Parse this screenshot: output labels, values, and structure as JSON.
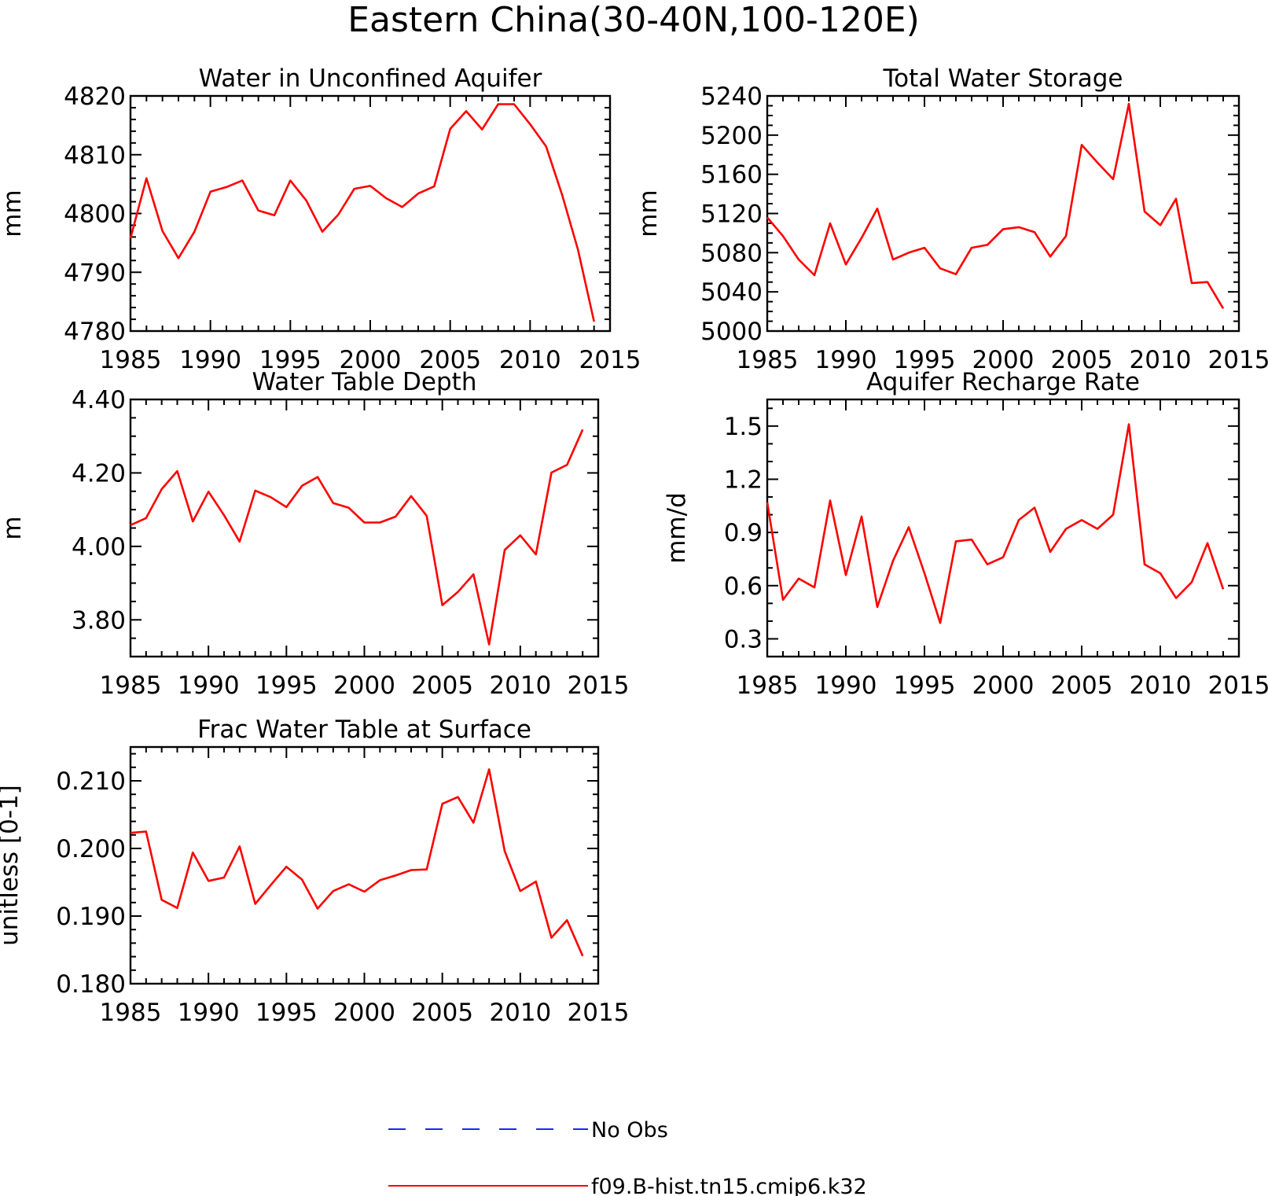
{
  "figure_title": "Eastern China(30-40N,100-120E)",
  "legend": {
    "entries": [
      {
        "label": "No Obs",
        "color": "#2222ff",
        "style": "dashed"
      },
      {
        "label": "f09.B-hist.tn15.cmip6.k32",
        "color": "#ff0000",
        "style": "solid"
      }
    ]
  },
  "chart_data": [
    {
      "type": "line",
      "title": "Water in Unconfined Aquifer",
      "xlabel": "",
      "ylabel": "mm",
      "xlim": [
        1985,
        2015
      ],
      "ylim": [
        4780,
        4820
      ],
      "xticks": [
        1985,
        1990,
        1995,
        2000,
        2005,
        2010,
        2015
      ],
      "xtick_labels": [
        "1985",
        "1990",
        "1995",
        "2000",
        "2005",
        "2010",
        "2015"
      ],
      "yticks": [
        4780,
        4790,
        4800,
        4810,
        4820
      ],
      "ytick_labels": [
        "4780",
        "4790",
        "4800",
        "4810",
        "4820"
      ],
      "series": [
        {
          "color": "#ff0000",
          "x": [
            1985,
            1986,
            1987,
            1988,
            1989,
            1990,
            1991,
            1992,
            1993,
            1994,
            1995,
            1996,
            1997,
            1998,
            1999,
            2000,
            2001,
            2002,
            2003,
            2004,
            2005,
            2006,
            2007,
            2008,
            2009,
            2010,
            2011,
            2012,
            2013,
            2014
          ],
          "y": [
            4795.8,
            4806.0,
            4797.0,
            4792.4,
            4796.9,
            4803.7,
            4804.5,
            4805.6,
            4800.5,
            4799.7,
            4805.6,
            4802.2,
            4796.9,
            4799.8,
            4804.2,
            4804.7,
            4802.6,
            4801.1,
            4803.4,
            4804.6,
            4814.4,
            4817.4,
            4814.3,
            4818.6,
            4818.6,
            4815.2,
            4811.4,
            4803.2,
            4793.8,
            4781.6
          ]
        }
      ]
    },
    {
      "type": "line",
      "title": "Total Water Storage",
      "xlabel": "",
      "ylabel": "mm",
      "xlim": [
        1985,
        2015
      ],
      "ylim": [
        5000,
        5240
      ],
      "xticks": [
        1985,
        1990,
        1995,
        2000,
        2005,
        2010,
        2015
      ],
      "xtick_labels": [
        "1985",
        "1990",
        "1995",
        "2000",
        "2005",
        "2010",
        "2015"
      ],
      "yticks": [
        5000,
        5040,
        5080,
        5120,
        5160,
        5200,
        5240
      ],
      "ytick_labels": [
        "5000",
        "5040",
        "5080",
        "5120",
        "5160",
        "5200",
        "5240"
      ],
      "series": [
        {
          "color": "#ff0000",
          "x": [
            1985,
            1986,
            1987,
            1988,
            1989,
            1990,
            1991,
            1992,
            1993,
            1994,
            1995,
            1996,
            1997,
            1998,
            1999,
            2000,
            2001,
            2002,
            2003,
            2004,
            2005,
            2006,
            2007,
            2008,
            2009,
            2010,
            2011,
            2012,
            2013,
            2014
          ],
          "y": [
            5116,
            5097,
            5073,
            5057,
            5110,
            5068,
            5095,
            5125,
            5073,
            5080,
            5085,
            5064,
            5058,
            5085,
            5088,
            5104,
            5106,
            5101,
            5076,
            5097,
            5190,
            5172,
            5155,
            5232,
            5122,
            5108,
            5135,
            5049,
            5050,
            5023
          ]
        }
      ]
    },
    {
      "type": "line",
      "title": "Water Table Depth",
      "xlabel": "",
      "ylabel": "m",
      "xlim": [
        1985,
        2015
      ],
      "ylim": [
        3.7,
        4.4
      ],
      "xticks": [
        1985,
        1990,
        1995,
        2000,
        2005,
        2010,
        2015
      ],
      "xtick_labels": [
        "1985",
        "1990",
        "1995",
        "2000",
        "2005",
        "2010",
        "2015"
      ],
      "yticks": [
        3.8,
        4.0,
        4.2,
        4.4
      ],
      "ytick_labels": [
        "3.80",
        "4.00",
        "4.20",
        "4.40"
      ],
      "series": [
        {
          "color": "#ff0000",
          "x": [
            1985,
            1986,
            1987,
            1988,
            1989,
            1990,
            1991,
            1992,
            1993,
            1994,
            1995,
            1996,
            1997,
            1998,
            1999,
            2000,
            2001,
            2002,
            2003,
            2004,
            2005,
            2006,
            2007,
            2008,
            2009,
            2010,
            2011,
            2012,
            2013,
            2014
          ],
          "y": [
            4.058,
            4.077,
            4.156,
            4.205,
            4.068,
            4.149,
            4.085,
            4.013,
            4.152,
            4.134,
            4.107,
            4.165,
            4.189,
            4.118,
            4.105,
            4.065,
            4.065,
            4.081,
            4.137,
            4.083,
            3.84,
            3.876,
            3.924,
            3.733,
            3.99,
            4.03,
            3.978,
            4.201,
            4.222,
            4.318
          ]
        }
      ]
    },
    {
      "type": "line",
      "title": "Aquifer Recharge Rate",
      "xlabel": "",
      "ylabel": "mm/d",
      "xlim": [
        1985,
        2015
      ],
      "ylim": [
        0.2,
        1.65
      ],
      "xticks": [
        1985,
        1990,
        1995,
        2000,
        2005,
        2010,
        2015
      ],
      "xtick_labels": [
        "1985",
        "1990",
        "1995",
        "2000",
        "2005",
        "2010",
        "2015"
      ],
      "yticks": [
        0.3,
        0.6,
        0.9,
        1.2,
        1.5
      ],
      "ytick_labels": [
        "0.3",
        "0.6",
        "0.9",
        "1.2",
        "1.5"
      ],
      "series": [
        {
          "color": "#ff0000",
          "x": [
            1985,
            1986,
            1987,
            1988,
            1989,
            1990,
            1991,
            1992,
            1993,
            1994,
            1995,
            1996,
            1997,
            1998,
            1999,
            2000,
            2001,
            2002,
            2003,
            2004,
            2005,
            2006,
            2007,
            2008,
            2009,
            2010,
            2011,
            2012,
            2013,
            2014
          ],
          "y": [
            1.07,
            0.52,
            0.64,
            0.59,
            1.08,
            0.66,
            0.99,
            0.48,
            0.74,
            0.93,
            0.67,
            0.39,
            0.85,
            0.86,
            0.72,
            0.76,
            0.97,
            1.04,
            0.79,
            0.92,
            0.97,
            0.92,
            1.0,
            1.51,
            0.72,
            0.67,
            0.53,
            0.62,
            0.84,
            0.58
          ]
        }
      ]
    },
    {
      "type": "line",
      "title": "Frac Water Table at Surface",
      "xlabel": "",
      "ylabel": "unitless [0-1]",
      "xlim": [
        1985,
        2015
      ],
      "ylim": [
        0.18,
        0.215
      ],
      "xticks": [
        1985,
        1990,
        1995,
        2000,
        2005,
        2010,
        2015
      ],
      "xtick_labels": [
        "1985",
        "1990",
        "1995",
        "2000",
        "2005",
        "2010",
        "2015"
      ],
      "yticks": [
        0.18,
        0.19,
        0.2,
        0.21
      ],
      "ytick_labels": [
        "0.180",
        "0.190",
        "0.200",
        "0.210"
      ],
      "series": [
        {
          "color": "#ff0000",
          "x": [
            1985,
            1986,
            1987,
            1988,
            1989,
            1990,
            1991,
            1992,
            1993,
            1994,
            1995,
            1996,
            1997,
            1998,
            1999,
            2000,
            2001,
            2002,
            2003,
            2004,
            2005,
            2006,
            2007,
            2008,
            2009,
            2010,
            2011,
            2012,
            2013,
            2014
          ],
          "y": [
            0.2023,
            0.2025,
            0.1924,
            0.1912,
            0.1994,
            0.1952,
            0.1957,
            0.2003,
            0.1918,
            0.1946,
            0.1973,
            0.1954,
            0.1911,
            0.1937,
            0.1947,
            0.1936,
            0.1953,
            0.196,
            0.1968,
            0.1969,
            0.2066,
            0.2076,
            0.2038,
            0.2117,
            0.1996,
            0.1937,
            0.1951,
            0.1868,
            0.1894,
            0.1841
          ]
        }
      ]
    }
  ]
}
